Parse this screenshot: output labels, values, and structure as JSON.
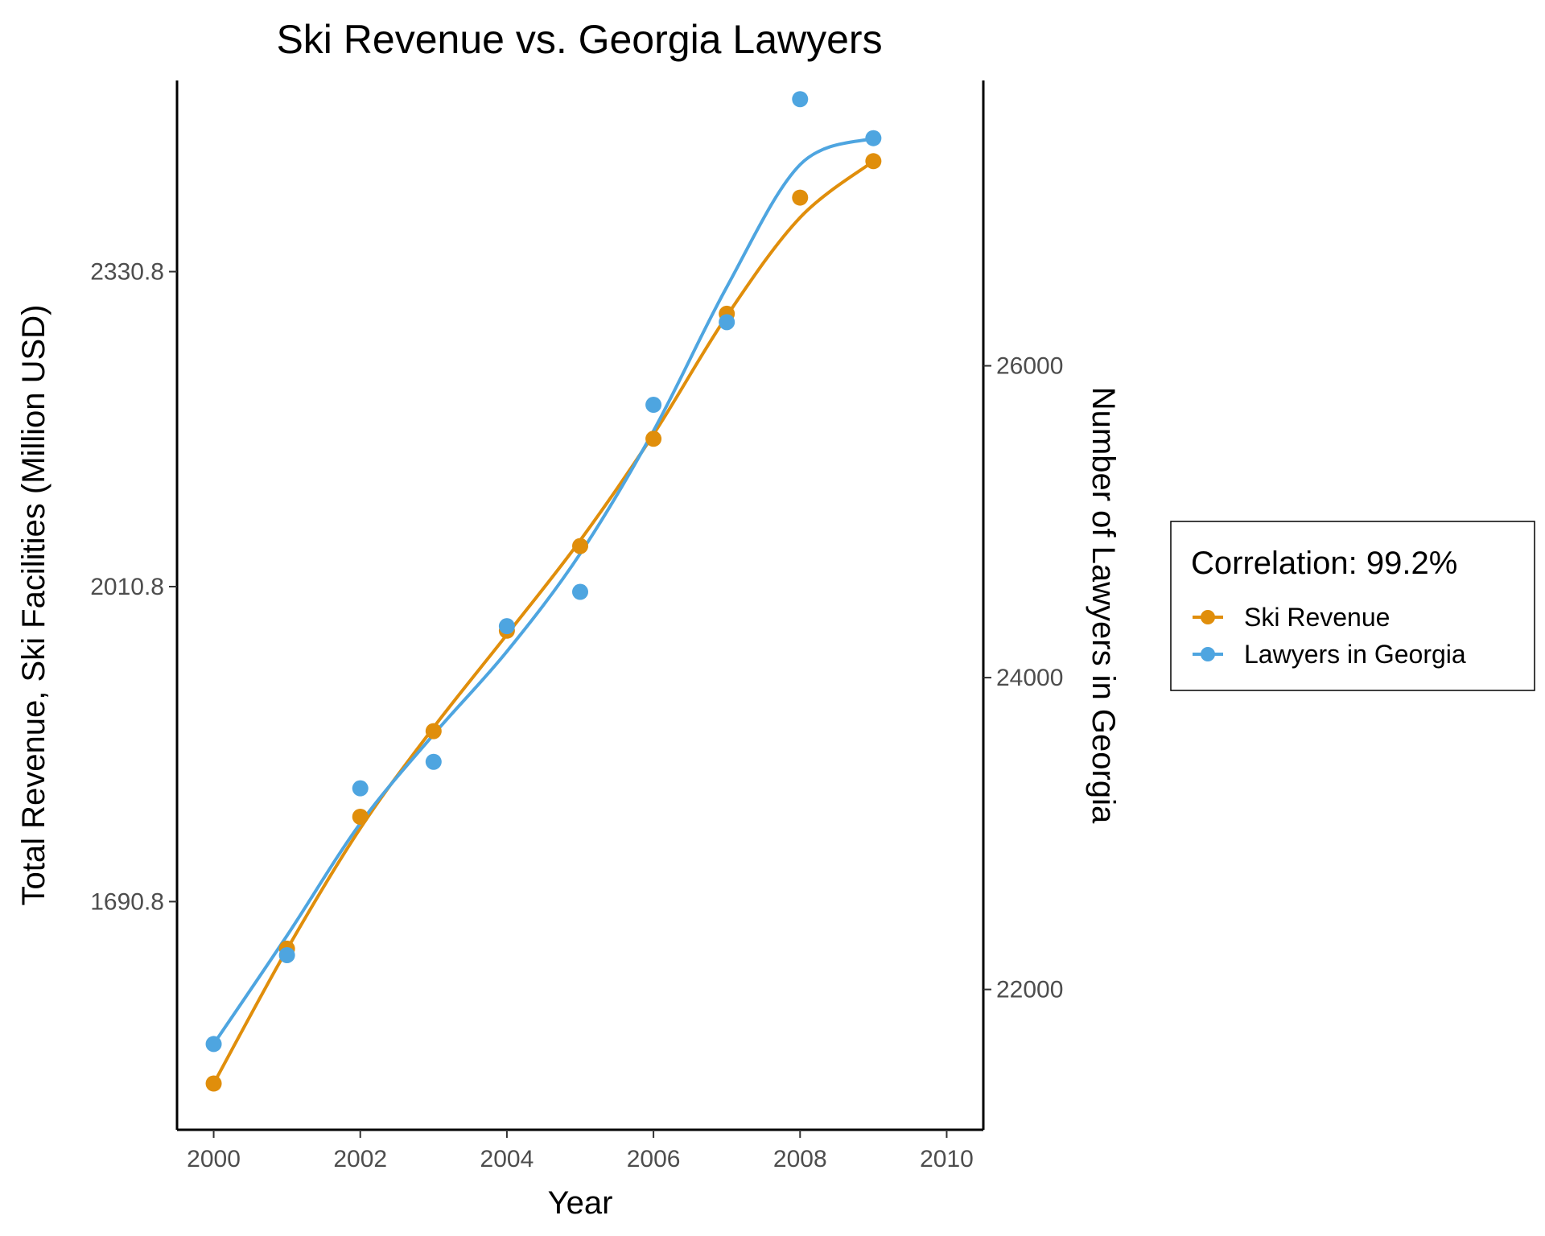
{
  "chart_data": {
    "type": "line",
    "title": "Ski Revenue vs. Georgia Lawyers",
    "xlabel": "Year",
    "ylabel_left": "Total Revenue, Ski Facilities (Million USD)",
    "ylabel_right": "Number of Lawyers in Georgia",
    "x": [
      2000,
      2001,
      2002,
      2003,
      2004,
      2005,
      2006,
      2007,
      2008,
      2009
    ],
    "xlim": [
      1999.5,
      2010.5
    ],
    "x_ticks": [
      2000,
      2002,
      2004,
      2006,
      2008,
      2010
    ],
    "ylim_left": [
      1459,
      2525
    ],
    "y_ticks_left": [
      1690.8,
      2010.8,
      2330.8
    ],
    "ylim_right": [
      21100,
      27830
    ],
    "y_ticks_right": [
      22000,
      24000,
      26000
    ],
    "grid": false,
    "smoothed_trend_lines": true,
    "legend": {
      "title": "Correlation: 99.2%",
      "position": "right"
    },
    "series": [
      {
        "name": "Ski Revenue",
        "axis": "left",
        "color": "#E08E0B",
        "values": [
          1506,
          1643,
          1777,
          1864,
          1966,
          2052,
          2161,
          2288,
          2406,
          2443
        ]
      },
      {
        "name": "Lawyers in Georgia",
        "axis": "right",
        "color": "#4EA5E0",
        "values": [
          21650,
          22220,
          23290,
          23460,
          24330,
          24550,
          25750,
          26280,
          27710,
          27460
        ]
      }
    ]
  }
}
